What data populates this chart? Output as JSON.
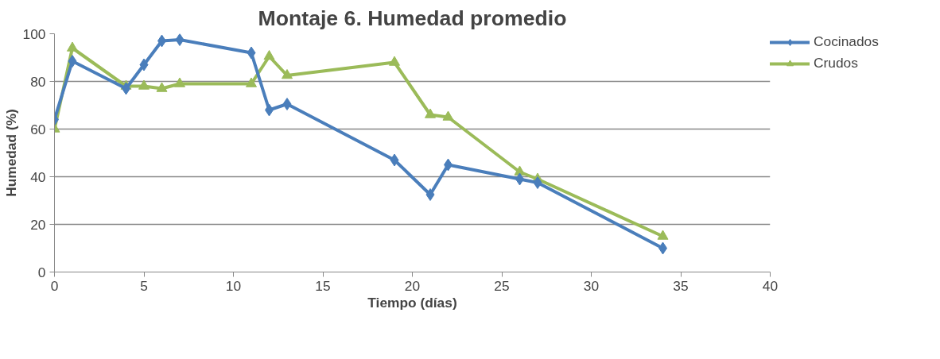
{
  "chart_data": {
    "type": "line",
    "title": "Montaje 6. Humedad promedio",
    "xlabel": "Tiempo (días)",
    "ylabel": "Humedad (%)",
    "x": [
      0,
      1,
      4,
      5,
      6,
      7,
      11,
      12,
      13,
      19,
      21,
      22,
      26,
      27,
      34
    ],
    "series": [
      {
        "name": "Cocinados",
        "color": "#4a7ebb",
        "marker": "diamond",
        "values": [
          64,
          88.5,
          77,
          87,
          97,
          97.5,
          92,
          68,
          70.5,
          47,
          32.5,
          45,
          39,
          37.5,
          10
        ]
      },
      {
        "name": "Crudos",
        "color": "#9bbb59",
        "marker": "triangle",
        "values": [
          60,
          94,
          78,
          78,
          77,
          79,
          79,
          90.5,
          82.5,
          88,
          66,
          65,
          42,
          39,
          15
        ]
      }
    ],
    "xlim": [
      0,
      40
    ],
    "xticks": [
      0,
      5,
      10,
      15,
      20,
      25,
      30,
      35,
      40
    ],
    "ylim": [
      0,
      100
    ],
    "yticks": [
      0,
      20,
      40,
      60,
      80,
      100
    ],
    "grid": "y",
    "legend": "right",
    "line_style": "solid"
  }
}
